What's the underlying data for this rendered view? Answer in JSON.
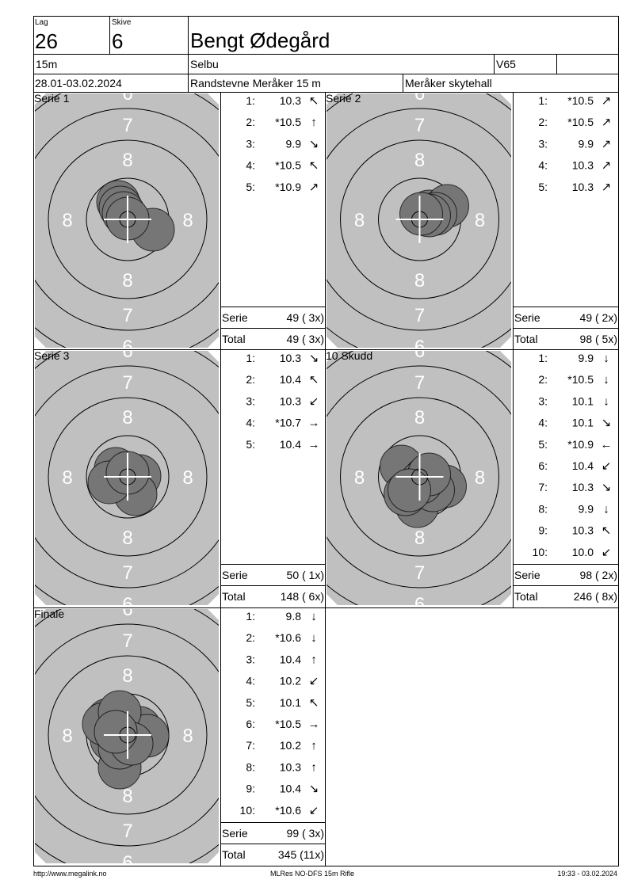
{
  "header": {
    "lag_label": "Lag",
    "lag": "26",
    "skive_label": "Skive",
    "skive": "6",
    "name": "Bengt Ødegård",
    "distance": "15m",
    "club": "Selbu",
    "class": "V65",
    "dates": "28.01-03.02.2024",
    "event": "Randstevne Meråker 15 m",
    "venue": "Meråker skytehall"
  },
  "target_labels": {
    "inner": "8",
    "middle": "7",
    "outer": "6"
  },
  "panels": [
    {
      "title": "Serie 1",
      "shots": [
        {
          "n": "1:",
          "score": "10.3",
          "dir": "↖"
        },
        {
          "n": "2:",
          "score": "*10.5",
          "dir": "↑"
        },
        {
          "n": "3:",
          "score": "9.9",
          "dir": "↘"
        },
        {
          "n": "4:",
          "score": "*10.5",
          "dir": "↖"
        },
        {
          "n": "5:",
          "score": "*10.9",
          "dir": "↗"
        }
      ],
      "serie_label": "Serie",
      "serie": "49 ( 3x)",
      "total_label": "Total",
      "total": "49 ( 3x)"
    },
    {
      "title": "Serie 2",
      "shots": [
        {
          "n": "1:",
          "score": "*10.5",
          "dir": "↗"
        },
        {
          "n": "2:",
          "score": "*10.5",
          "dir": "↗"
        },
        {
          "n": "3:",
          "score": "9.9",
          "dir": "↗"
        },
        {
          "n": "4:",
          "score": "10.3",
          "dir": "↗"
        },
        {
          "n": "5:",
          "score": "10.3",
          "dir": "↗"
        }
      ],
      "serie_label": "Serie",
      "serie": "49 ( 2x)",
      "total_label": "Total",
      "total": "98 ( 5x)"
    },
    {
      "title": "Serie 3",
      "shots": [
        {
          "n": "1:",
          "score": "10.3",
          "dir": "↘"
        },
        {
          "n": "2:",
          "score": "10.4",
          "dir": "↖"
        },
        {
          "n": "3:",
          "score": "10.3",
          "dir": "↙"
        },
        {
          "n": "4:",
          "score": "*10.7",
          "dir": "→"
        },
        {
          "n": "5:",
          "score": "10.4",
          "dir": "→"
        }
      ],
      "serie_label": "Serie",
      "serie": "50 ( 1x)",
      "total_label": "Total",
      "total": "148 ( 6x)"
    },
    {
      "title": "10 Skudd",
      "shots": [
        {
          "n": "1:",
          "score": "9.9",
          "dir": "↓"
        },
        {
          "n": "2:",
          "score": "*10.5",
          "dir": "↓"
        },
        {
          "n": "3:",
          "score": "10.1",
          "dir": "↓"
        },
        {
          "n": "4:",
          "score": "10.1",
          "dir": "↘"
        },
        {
          "n": "5:",
          "score": "*10.9",
          "dir": "←"
        },
        {
          "n": "6:",
          "score": "10.4",
          "dir": "↙"
        },
        {
          "n": "7:",
          "score": "10.3",
          "dir": "↘"
        },
        {
          "n": "8:",
          "score": "9.9",
          "dir": "↓"
        },
        {
          "n": "9:",
          "score": "10.3",
          "dir": "↖"
        },
        {
          "n": "10:",
          "score": "10.0",
          "dir": "↙"
        }
      ],
      "serie_label": "Serie",
      "serie": "98 ( 2x)",
      "total_label": "Total",
      "total": "246 ( 8x)"
    },
    {
      "title": "Finale",
      "shots": [
        {
          "n": "1:",
          "score": "9.8",
          "dir": "↓"
        },
        {
          "n": "2:",
          "score": "*10.6",
          "dir": "↓"
        },
        {
          "n": "3:",
          "score": "10.4",
          "dir": "↑"
        },
        {
          "n": "4:",
          "score": "10.2",
          "dir": "↙"
        },
        {
          "n": "5:",
          "score": "10.1",
          "dir": "↖"
        },
        {
          "n": "6:",
          "score": "*10.5",
          "dir": "→"
        },
        {
          "n": "7:",
          "score": "10.2",
          "dir": "↑"
        },
        {
          "n": "8:",
          "score": "10.3",
          "dir": "↑"
        },
        {
          "n": "9:",
          "score": "10.4",
          "dir": "↘"
        },
        {
          "n": "10:",
          "score": "*10.6",
          "dir": "↙"
        }
      ],
      "serie_label": "Serie",
      "serie": "99 ( 3x)",
      "total_label": "Total",
      "total": "345 (11x)"
    }
  ],
  "footer": {
    "url": "http://www.megalink.no",
    "program": "MLRes NO-DFS 15m Rifle",
    "timestamp": "19:33 - 03.02.2024"
  }
}
